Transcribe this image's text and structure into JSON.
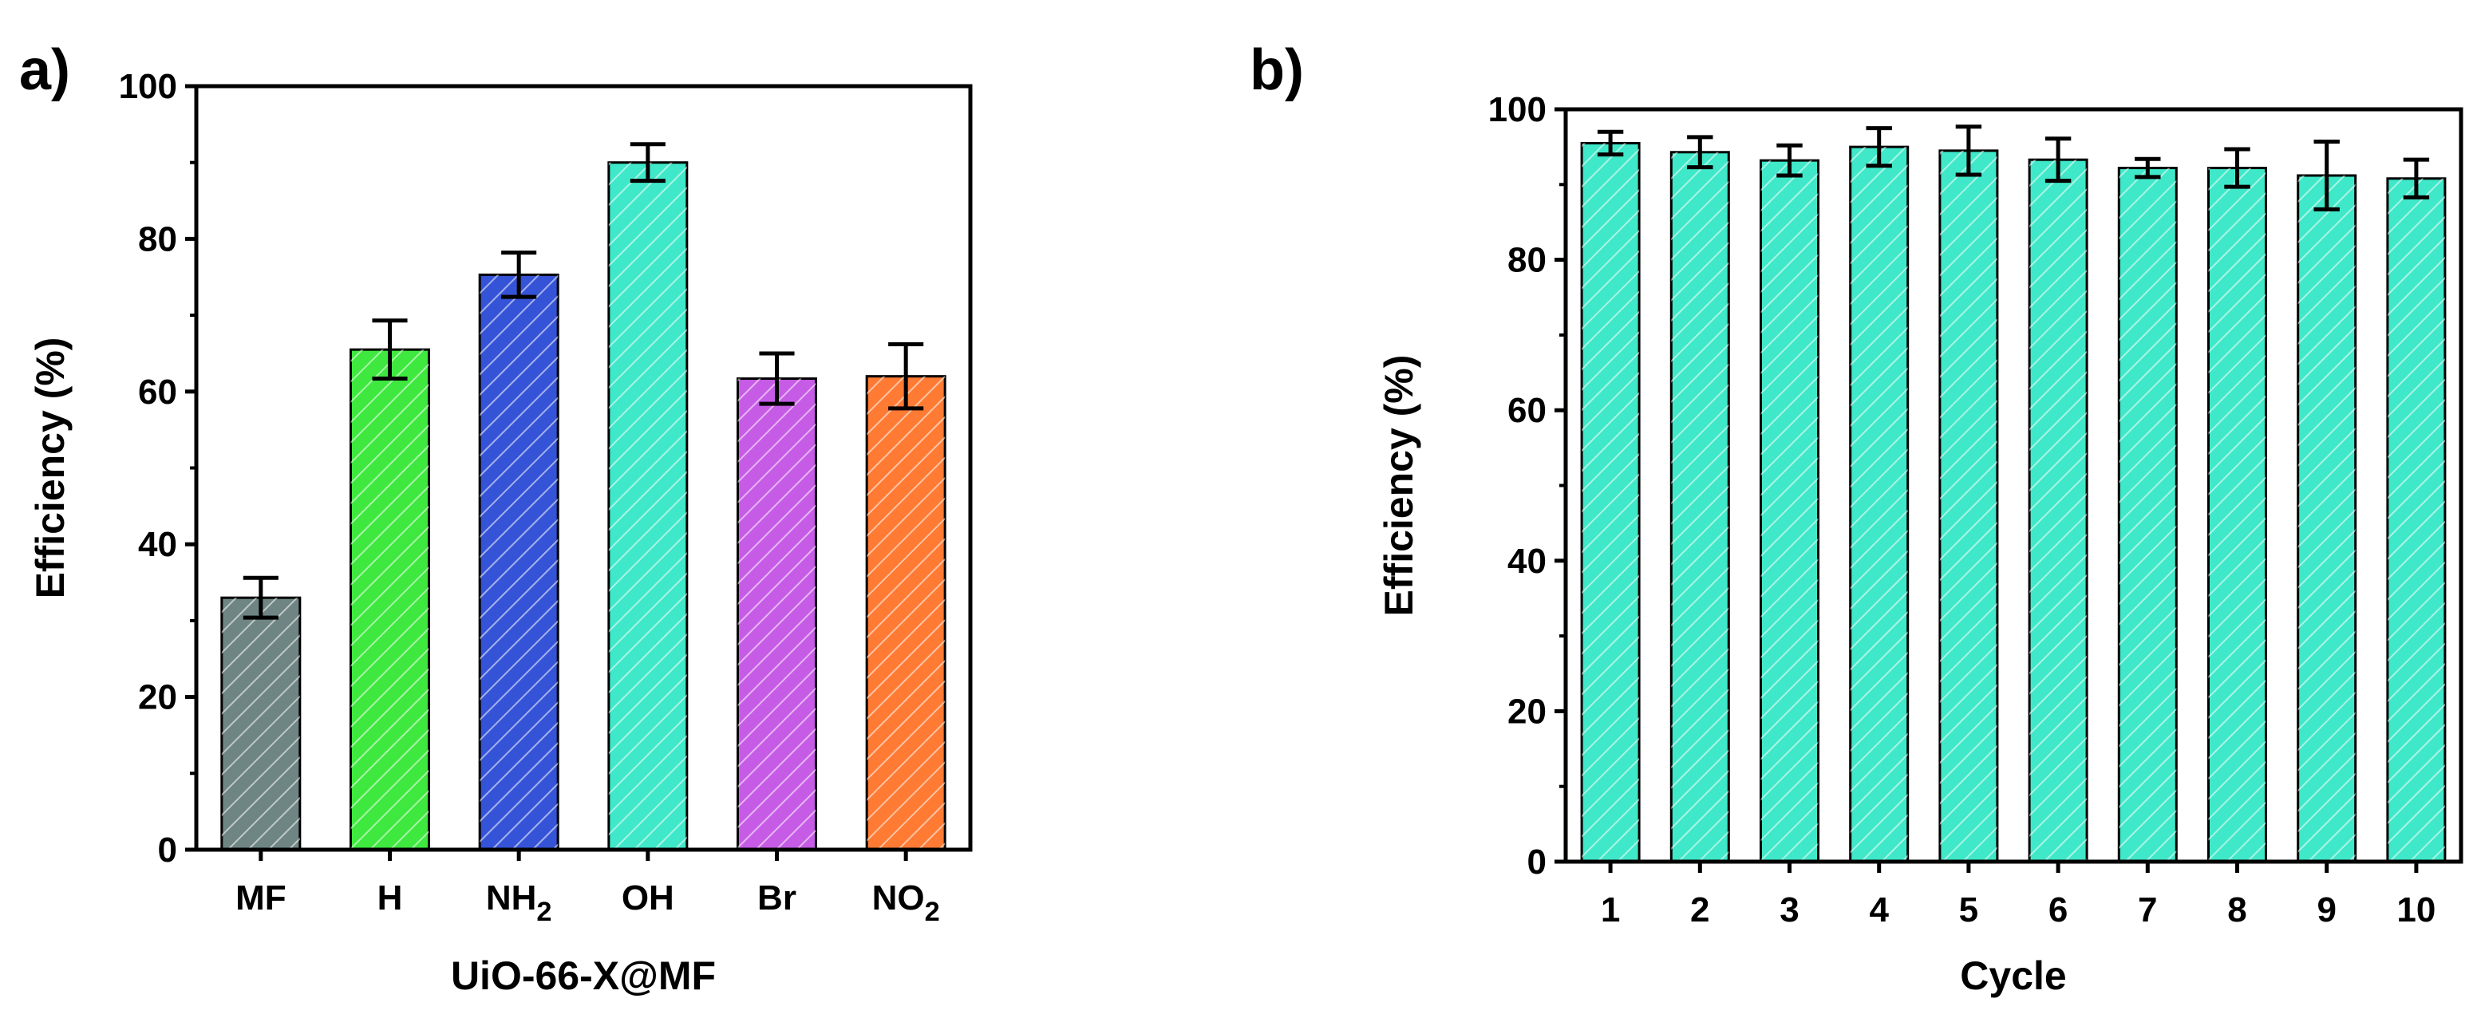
{
  "chart_data": [
    {
      "type": "bar",
      "panel_label": "a)",
      "title": "",
      "xlabel": "UiO-66-X@MF",
      "ylabel": "Efficiency (%)",
      "ylim": [
        0,
        100
      ],
      "yticks": [
        0,
        20,
        40,
        60,
        80,
        100
      ],
      "categories": [
        {
          "base": "MF",
          "sub": ""
        },
        {
          "base": "H",
          "sub": ""
        },
        {
          "base": "NH",
          "sub": "2"
        },
        {
          "base": "OH",
          "sub": ""
        },
        {
          "base": "Br",
          "sub": ""
        },
        {
          "base": "NO",
          "sub": "2"
        }
      ],
      "values": [
        33,
        65.5,
        75.3,
        90,
        61.7,
        62
      ],
      "errors": [
        2.6,
        3.8,
        2.9,
        2.4,
        3.3,
        4.2
      ],
      "colors": [
        "#6e8583",
        "#3ee83e",
        "#3553d6",
        "#3fe8c8",
        "#c65be6",
        "#ff7a33"
      ],
      "legend": "none",
      "grid": false
    },
    {
      "type": "bar",
      "panel_label": "b)",
      "title": "",
      "xlabel": "Cycle",
      "ylabel": "Efficiency (%)",
      "ylim": [
        0,
        100
      ],
      "yticks": [
        0,
        20,
        40,
        60,
        80,
        100
      ],
      "categories": [
        {
          "base": "1",
          "sub": ""
        },
        {
          "base": "2",
          "sub": ""
        },
        {
          "base": "3",
          "sub": ""
        },
        {
          "base": "4",
          "sub": ""
        },
        {
          "base": "5",
          "sub": ""
        },
        {
          "base": "6",
          "sub": ""
        },
        {
          "base": "7",
          "sub": ""
        },
        {
          "base": "8",
          "sub": ""
        },
        {
          "base": "9",
          "sub": ""
        },
        {
          "base": "10",
          "sub": ""
        }
      ],
      "values": [
        95.5,
        94.3,
        93.2,
        95,
        94.5,
        93.3,
        92.2,
        92.2,
        91.2,
        90.8
      ],
      "errors": [
        1.5,
        2,
        2,
        2.5,
        3.2,
        2.8,
        1.2,
        2.5,
        4.5,
        2.5
      ],
      "colors": [
        "#3fe8c8"
      ],
      "legend": "none",
      "grid": false
    }
  ]
}
